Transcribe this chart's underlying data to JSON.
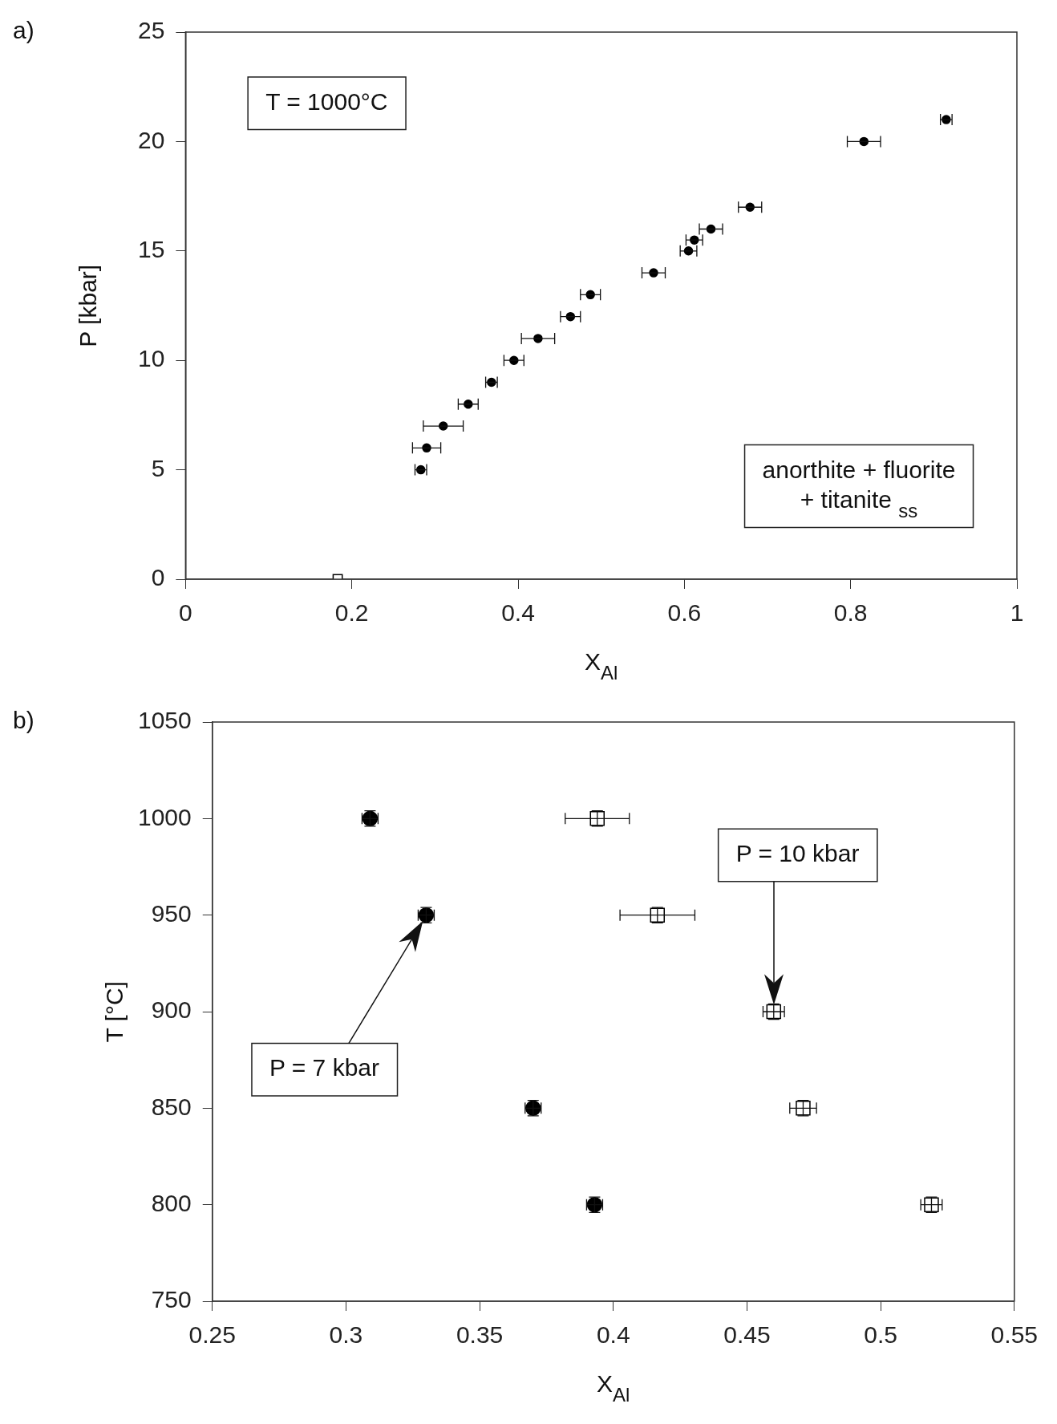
{
  "chart_data": [
    {
      "type": "scatter",
      "title": "a)",
      "xlabel": "X$_{Al}$",
      "ylabel": "P [kbar]",
      "xlim": [
        0,
        1
      ],
      "xticks": [
        0,
        0.2,
        0.4,
        0.6,
        0.8,
        1
      ],
      "ylim": [
        0,
        25
      ],
      "yticks": [
        0,
        5,
        10,
        15,
        20,
        25
      ],
      "grid": false,
      "legend": false,
      "series": [
        {
          "color": "#000000",
          "marker": "circle",
          "x": [
            0.283,
            0.29,
            0.31,
            0.34,
            0.368,
            0.395,
            0.424,
            0.463,
            0.487,
            0.563,
            0.605,
            0.612,
            0.632,
            0.679,
            0.816,
            0.915
          ],
          "values": [
            5,
            6,
            7,
            8,
            9,
            10,
            11,
            12,
            13,
            14,
            15,
            15.5,
            16,
            17,
            20,
            21
          ],
          "xerrors": [
            0.007,
            0.017,
            0.024,
            0.012,
            0.007,
            0.012,
            0.02,
            0.012,
            0.012,
            0.014,
            0.01,
            0.01,
            0.014,
            0.014,
            0.02,
            0.007
          ]
        },
        {
          "color": "#000000",
          "marker": "square",
          "x": [
            0.183
          ],
          "values": [
            0
          ]
        }
      ],
      "annotations": [
        "T = 1000°C",
        "anorthite + fluorite + titanite $_{ss}$"
      ]
    },
    {
      "type": "scatter",
      "title": "b)",
      "xlabel": "X$_{Al}$",
      "ylabel": "T [°C]",
      "xlim": [
        0.25,
        0.55
      ],
      "xticks": [
        0.25,
        0.3,
        0.35,
        0.4,
        0.45,
        0.5,
        0.55
      ],
      "ylim": [
        750,
        1050
      ],
      "yticks": [
        750,
        800,
        850,
        900,
        950,
        1000,
        1050
      ],
      "grid": false,
      "legend": false,
      "series": [
        {
          "color": "#000000",
          "marker": "circle",
          "x": [
            0.309,
            0.33,
            0.37,
            0.393
          ],
          "values": [
            1000,
            950,
            850,
            800
          ],
          "xerrors": [
            0.003,
            0.003,
            0.003,
            0.003
          ],
          "errors": [
            4,
            4,
            4,
            4
          ]
        },
        {
          "color": "#000000",
          "marker": "square",
          "x": [
            0.394,
            0.4165,
            0.46,
            0.471,
            0.519
          ],
          "values": [
            1000,
            950,
            900,
            850,
            800
          ],
          "xerrors": [
            0.012,
            0.014,
            0.004,
            0.005,
            0.004
          ],
          "errors": [
            4,
            4,
            4,
            4,
            4
          ]
        }
      ],
      "annotations": [
        "P = 7 kbar",
        "P = 10 kbar"
      ]
    }
  ]
}
